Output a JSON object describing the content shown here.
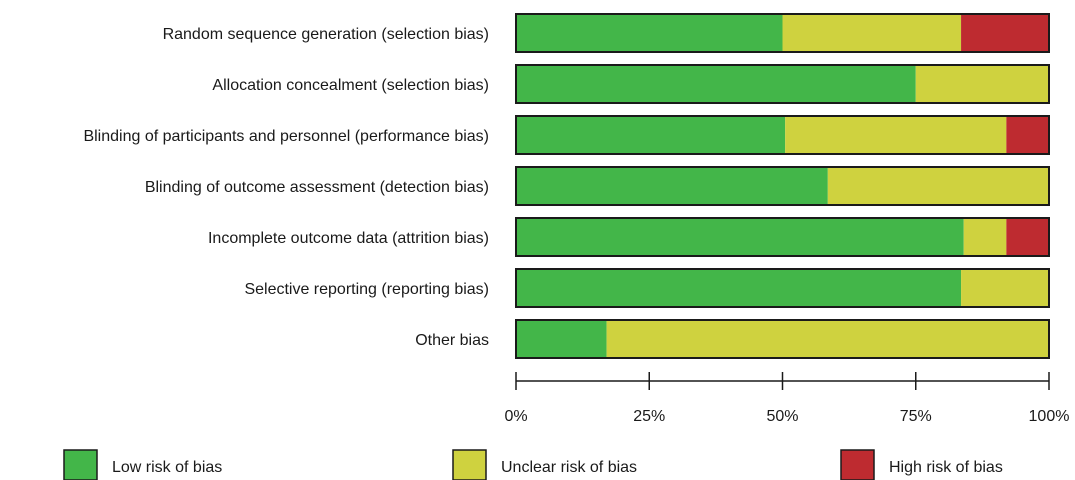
{
  "chart_data": {
    "type": "bar",
    "stacked": true,
    "orientation": "horizontal",
    "xlim": [
      0,
      100
    ],
    "grid": false,
    "legend_position": "bottom",
    "categories": [
      "Random sequence generation (selection bias)",
      "Allocation concealment (selection bias)",
      "Blinding of participants and personnel (performance bias)",
      "Blinding of outcome assessment (detection bias)",
      "Incomplete outcome data (attrition bias)",
      "Selective reporting (reporting bias)",
      "Other bias"
    ],
    "x_ticks": [
      "0%",
      "25%",
      "50%",
      "75%",
      "100%"
    ],
    "series": [
      {
        "name": "Low risk of bias",
        "color": "#43b649",
        "values": [
          50,
          75,
          50.5,
          58.5,
          84,
          83.5,
          17
        ]
      },
      {
        "name": "Unclear risk of bias",
        "color": "#cfd23f",
        "values": [
          33.5,
          25,
          41.5,
          41.5,
          8,
          16.5,
          83
        ]
      },
      {
        "name": "High risk of bias",
        "color": "#be2b30",
        "values": [
          16.5,
          0,
          8,
          0,
          8,
          0,
          0
        ]
      }
    ]
  }
}
